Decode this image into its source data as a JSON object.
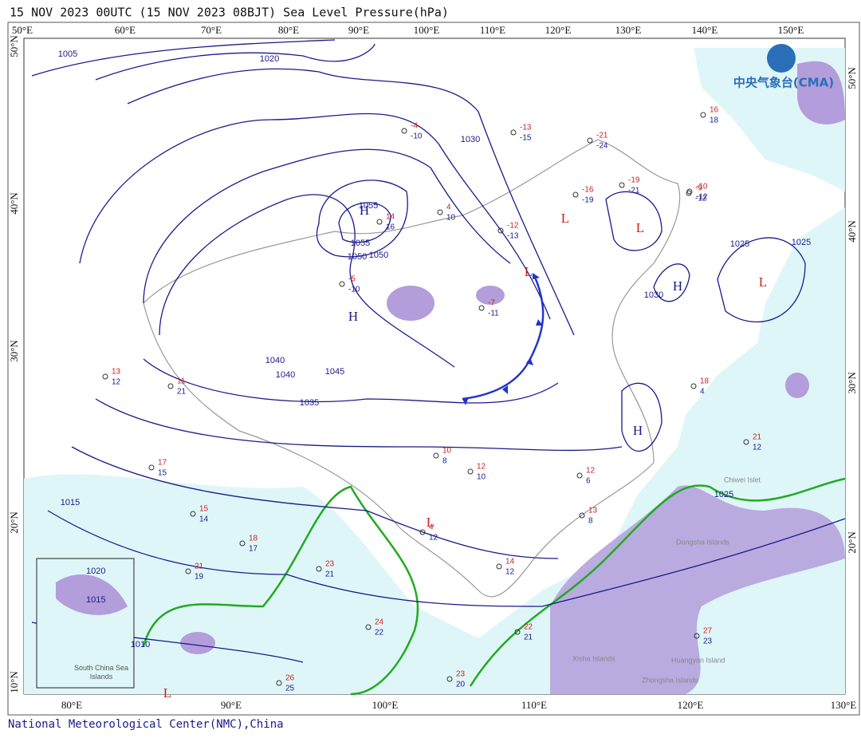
{
  "header": {
    "title": "15 NOV 2023 00UTC (15 NOV 2023 08BJT) Sea Level Pressure(hPa)"
  },
  "logo": {
    "text": "中央气象台(CMA)"
  },
  "map": {
    "top_lon_labels": [
      "50°E",
      "60°E",
      "70°E",
      "80°E",
      "90°E",
      "100°E",
      "110°E",
      "120°E",
      "130°E",
      "140°E",
      "150°E"
    ],
    "bottom_lon_labels": [
      "80°E",
      "90°E",
      "100°E",
      "110°E",
      "120°E",
      "130°E"
    ],
    "left_lat_labels": [
      "50°N",
      "40°N",
      "30°N",
      "20°N",
      "10°N"
    ],
    "right_lat_labels": [
      "50°N",
      "40°N",
      "30°N",
      "20°N"
    ],
    "pressure_centers": [
      "H",
      "H",
      "H",
      "H",
      "L",
      "L",
      "L",
      "L",
      "L",
      "L"
    ],
    "isobar_labels": [
      "1055",
      "1055",
      "1050",
      "1050",
      "1045",
      "1040",
      "1040",
      "1035",
      "1030",
      "1025",
      "1020",
      "1015",
      "1010",
      "1025",
      "1030",
      "1025",
      "1005"
    ],
    "place_labels": [
      "Chiwei Islet",
      "Dongsha Islands",
      "Xisha Islands",
      "Zhongsha Islands",
      "Huangyan Island"
    ],
    "stations": [
      {
        "top": -13,
        "bottom": -15
      },
      {
        "top": -21,
        "bottom": -24
      },
      {
        "top": -19,
        "bottom": -21
      },
      {
        "top": -16,
        "bottom": -19
      },
      {
        "top": -10,
        "bottom": -12
      },
      {
        "top": -4,
        "bottom": -10
      },
      {
        "top": -12,
        "bottom": -13
      },
      {
        "top": 14,
        "bottom": 16
      },
      {
        "top": 4,
        "bottom": 10
      },
      {
        "top": -5,
        "bottom": -10
      },
      {
        "top": -7,
        "bottom": -11
      },
      {
        "top": 4,
        "bottom": 12
      },
      {
        "top": 11,
        "bottom": 21
      },
      {
        "top": 13,
        "bottom": 12
      },
      {
        "top": 17,
        "bottom": 15
      },
      {
        "top": 15,
        "bottom": 14
      },
      {
        "top": 10,
        "bottom": 8
      },
      {
        "top": 12,
        "bottom": 10
      },
      {
        "top": 18,
        "bottom": 17
      },
      {
        "top": 21,
        "bottom": 19
      },
      {
        "top": 23,
        "bottom": 21
      },
      {
        "top": 24,
        "bottom": 22
      },
      {
        "top": 26,
        "bottom": 25
      },
      {
        "top": 23,
        "bottom": 20
      },
      {
        "top": 22,
        "bottom": 21
      },
      {
        "top": 27,
        "bottom": 23
      },
      {
        "top": 14,
        "bottom": 12
      },
      {
        "top": 13,
        "bottom": 8
      },
      {
        "top": 12,
        "bottom": 6
      },
      {
        "top": 21,
        "bottom": 12
      },
      {
        "top": 18,
        "bottom": 4
      },
      {
        "top": 16,
        "bottom": 18
      },
      {
        "top": -9,
        "bottom": -12
      }
    ],
    "inset": {
      "label": "South China Sea Islands",
      "isobar": "1020",
      "isobar2": "1015"
    }
  },
  "footer": {
    "text": "National Meteorological Center(NMC),China"
  }
}
